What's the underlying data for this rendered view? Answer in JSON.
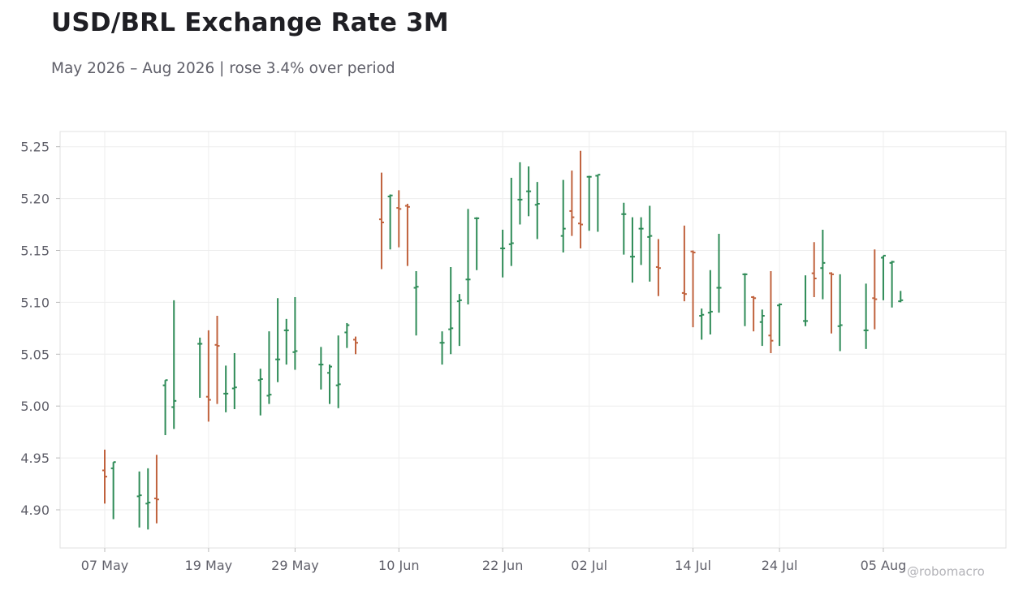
{
  "header": {
    "title": "USD/BRL Exchange Rate 3M",
    "subtitle": "May 2026 – Aug 2026 | rose 3.4% over period"
  },
  "watermark": "@robomacro",
  "colors": {
    "up": "#2e8b57",
    "down": "#c0623d",
    "grid": "#eeeeee",
    "frame": "#e2e2e2",
    "tick_text": "#5f5f69"
  },
  "chart_data": {
    "type": "ohlc",
    "title": "USD/BRL Exchange Rate 3M",
    "subtitle": "May 2026 – Aug 2026 | rose 3.4% over period",
    "xlabel": "",
    "ylabel": "",
    "grid": true,
    "ylim": [
      4.865,
      5.265
    ],
    "y_ticks": [
      4.9,
      4.95,
      5.0,
      5.05,
      5.1,
      5.15,
      5.2,
      5.25
    ],
    "y_tick_labels": [
      "4.90",
      "4.95",
      "5.00",
      "5.05",
      "5.10",
      "5.15",
      "5.20",
      "5.25"
    ],
    "x_ticks": [
      "2026-05-07",
      "2026-05-19",
      "2026-05-29",
      "2026-06-10",
      "2026-06-22",
      "2026-07-02",
      "2026-07-14",
      "2026-07-24",
      "2026-08-05"
    ],
    "x_tick_labels": [
      "07 May",
      "19 May",
      "29 May",
      "10 Jun",
      "22 Jun",
      "02 Jul",
      "14 Jul",
      "24 Jul",
      "05 Aug"
    ],
    "dates": [
      "2026-05-07",
      "2026-05-08",
      "2026-05-11",
      "2026-05-12",
      "2026-05-13",
      "2026-05-14",
      "2026-05-15",
      "2026-05-18",
      "2026-05-19",
      "2026-05-20",
      "2026-05-21",
      "2026-05-22",
      "2026-05-25",
      "2026-05-26",
      "2026-05-27",
      "2026-05-28",
      "2026-05-29",
      "2026-06-01",
      "2026-06-02",
      "2026-06-03",
      "2026-06-04",
      "2026-06-05",
      "2026-06-08",
      "2026-06-09",
      "2026-06-10",
      "2026-06-11",
      "2026-06-12",
      "2026-06-15",
      "2026-06-16",
      "2026-06-17",
      "2026-06-18",
      "2026-06-19",
      "2026-06-22",
      "2026-06-23",
      "2026-06-24",
      "2026-06-25",
      "2026-06-26",
      "2026-06-29",
      "2026-06-30",
      "2026-07-01",
      "2026-07-02",
      "2026-07-03",
      "2026-07-06",
      "2026-07-07",
      "2026-07-08",
      "2026-07-09",
      "2026-07-10",
      "2026-07-13",
      "2026-07-14",
      "2026-07-15",
      "2026-07-16",
      "2026-07-17",
      "2026-07-20",
      "2026-07-21",
      "2026-07-22",
      "2026-07-23",
      "2026-07-24",
      "2026-07-27",
      "2026-07-28",
      "2026-07-29",
      "2026-07-30",
      "2026-07-31",
      "2026-08-03",
      "2026-08-04",
      "2026-08-05",
      "2026-08-06",
      "2026-08-07"
    ],
    "open": [
      4.938,
      4.94,
      4.913,
      4.906,
      4.911,
      5.02,
      4.999,
      5.06,
      5.009,
      5.059,
      5.012,
      5.017,
      5.025,
      5.01,
      5.045,
      5.073,
      5.052,
      5.04,
      5.032,
      5.02,
      5.071,
      5.064,
      5.18,
      5.202,
      5.191,
      5.193,
      5.114,
      5.061,
      5.074,
      5.101,
      5.122,
      5.181,
      5.152,
      5.156,
      5.199,
      5.207,
      5.194,
      5.164,
      5.188,
      5.176,
      5.221,
      5.222,
      5.185,
      5.144,
      5.171,
      5.163,
      5.134,
      5.109,
      5.149,
      5.087,
      5.09,
      5.114,
      5.127,
      5.105,
      5.081,
      5.068,
      5.097,
      5.082,
      5.128,
      5.133,
      5.128,
      5.077,
      5.073,
      5.104,
      5.143,
      5.138,
      5.101
    ],
    "high": [
      4.958,
      4.946,
      4.937,
      4.94,
      4.953,
      5.025,
      5.102,
      5.066,
      5.073,
      5.087,
      5.039,
      5.051,
      5.036,
      5.072,
      5.104,
      5.084,
      5.105,
      5.057,
      5.04,
      5.068,
      5.08,
      5.067,
      5.225,
      5.204,
      5.208,
      5.195,
      5.13,
      5.072,
      5.134,
      5.108,
      5.19,
      5.182,
      5.17,
      5.22,
      5.235,
      5.231,
      5.216,
      5.218,
      5.227,
      5.246,
      5.222,
      5.223,
      5.196,
      5.182,
      5.182,
      5.193,
      5.161,
      5.174,
      5.15,
      5.094,
      5.131,
      5.166,
      5.128,
      5.106,
      5.093,
      5.13,
      5.099,
      5.126,
      5.158,
      5.17,
      5.129,
      5.127,
      5.118,
      5.151,
      5.145,
      5.14,
      5.111
    ],
    "low": [
      4.906,
      4.891,
      4.883,
      4.881,
      4.887,
      4.972,
      4.978,
      5.008,
      4.985,
      5.002,
      4.994,
      4.997,
      4.991,
      5.002,
      5.023,
      5.04,
      5.035,
      5.016,
      5.002,
      4.998,
      5.056,
      5.05,
      5.132,
      5.151,
      5.153,
      5.135,
      5.068,
      5.04,
      5.05,
      5.058,
      5.098,
      5.131,
      5.124,
      5.135,
      5.175,
      5.183,
      5.161,
      5.148,
      5.164,
      5.152,
      5.169,
      5.168,
      5.146,
      5.119,
      5.136,
      5.12,
      5.106,
      5.101,
      5.076,
      5.064,
      5.069,
      5.09,
      5.077,
      5.072,
      5.058,
      5.051,
      5.058,
      5.077,
      5.105,
      5.103,
      5.07,
      5.053,
      5.055,
      5.074,
      5.102,
      5.095,
      5.1
    ],
    "close": [
      4.932,
      4.946,
      4.914,
      4.907,
      4.91,
      5.025,
      5.005,
      5.06,
      5.006,
      5.058,
      5.012,
      5.018,
      5.026,
      5.011,
      5.045,
      5.073,
      5.053,
      5.04,
      5.038,
      5.021,
      5.078,
      5.061,
      5.177,
      5.203,
      5.19,
      5.192,
      5.115,
      5.061,
      5.075,
      5.102,
      5.122,
      5.181,
      5.152,
      5.157,
      5.199,
      5.207,
      5.195,
      5.171,
      5.182,
      5.175,
      5.221,
      5.223,
      5.185,
      5.144,
      5.171,
      5.164,
      5.133,
      5.108,
      5.148,
      5.088,
      5.091,
      5.114,
      5.127,
      5.104,
      5.087,
      5.063,
      5.098,
      5.082,
      5.123,
      5.138,
      5.127,
      5.078,
      5.073,
      5.103,
      5.145,
      5.139,
      5.102
    ]
  }
}
